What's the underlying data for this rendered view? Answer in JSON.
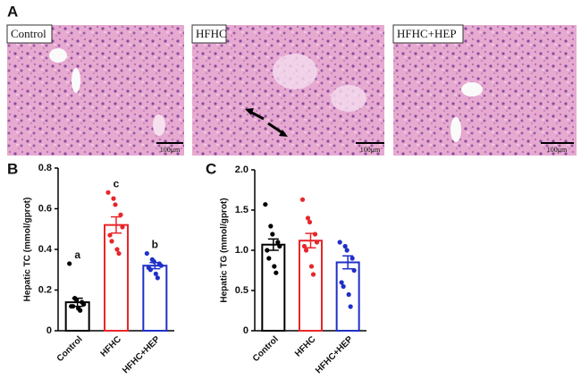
{
  "figure": {
    "panel_labels": [
      "A",
      "B",
      "C"
    ],
    "images": [
      {
        "label": "Control",
        "scale_bar": "100μm"
      },
      {
        "label": "HFHC",
        "scale_bar": "100μm"
      },
      {
        "label": "HFHC+HEP",
        "scale_bar": "100μm"
      }
    ]
  },
  "chart_data": [
    {
      "type": "bar",
      "ylabel": "Hepatic TC (mmol/gprot)",
      "categories": [
        "Control",
        "HFHC",
        "HFHC+HEP"
      ],
      "values": [
        0.14,
        0.52,
        0.32
      ],
      "errors": [
        0.02,
        0.04,
        0.015
      ],
      "colors": [
        "#000000",
        "#e8262a",
        "#1f2fc8"
      ],
      "annotations": [
        "a",
        "c",
        "b"
      ],
      "points": [
        [
          0.33,
          0.16,
          0.15,
          0.14,
          0.13,
          0.12,
          0.12,
          0.11,
          0.1
        ],
        [
          0.68,
          0.65,
          0.62,
          0.57,
          0.51,
          0.47,
          0.44,
          0.4,
          0.38
        ],
        [
          0.38,
          0.35,
          0.34,
          0.33,
          0.32,
          0.31,
          0.3,
          0.28,
          0.26
        ]
      ],
      "ylim": [
        0,
        0.8
      ],
      "yticks": [
        0,
        0.2,
        0.4,
        0.6,
        0.8
      ]
    },
    {
      "type": "bar",
      "ylabel": "Hepatic TG (mmol/gprot)",
      "categories": [
        "Control",
        "HFHC",
        "HFHC+HEP"
      ],
      "values": [
        1.07,
        1.12,
        0.85
      ],
      "errors": [
        0.07,
        0.09,
        0.08
      ],
      "colors": [
        "#000000",
        "#e8262a",
        "#1f2fc8"
      ],
      "points": [
        [
          1.57,
          1.3,
          1.2,
          1.1,
          1.05,
          1.0,
          0.9,
          0.8,
          0.72
        ],
        [
          1.63,
          1.4,
          1.35,
          1.2,
          1.1,
          1.05,
          1.0,
          0.8,
          0.7
        ],
        [
          1.1,
          1.05,
          1.0,
          0.9,
          0.75,
          0.6,
          0.55,
          0.45,
          0.3
        ]
      ],
      "ylim": [
        0,
        2.0
      ],
      "yticks": [
        0,
        0.5,
        {
          "value": 1.0,
          "label": "1.0"
        },
        1.5,
        {
          "value": 2.0,
          "label": "2.0"
        }
      ]
    }
  ]
}
